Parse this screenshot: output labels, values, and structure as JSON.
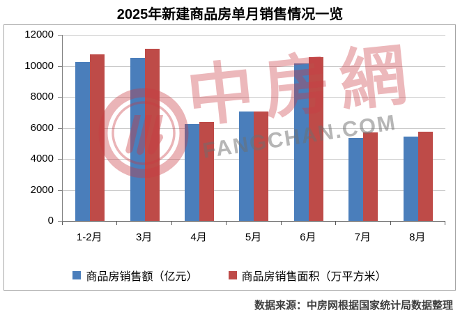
{
  "page": {
    "title": "2025年新建商品房单月销售情况一览",
    "source_note": "数据来源：中房网根据国家统计局数据整理"
  },
  "watermark": {
    "logo": "fangchan-circle-logo",
    "brand_text": "中房網",
    "domain_text": "FANGCHAN.COM"
  },
  "chart_data": {
    "type": "bar",
    "title": "2025年新建商品房单月销售情况一览",
    "categories": [
      "1-2月",
      "3月",
      "4月",
      "5月",
      "6月",
      "7月",
      "8月"
    ],
    "series": [
      {
        "name": "商品房销售额（亿元）",
        "color": "#4a7ebb",
        "values": [
          10250,
          10500,
          6250,
          7050,
          10150,
          5350,
          5450
        ]
      },
      {
        "name": "商品房销售面积（万平方米）",
        "color": "#be4b48",
        "values": [
          10750,
          11100,
          6400,
          7050,
          10550,
          5700,
          5750
        ]
      }
    ],
    "ylim": [
      0,
      12000
    ],
    "ytick_step": 2000,
    "grid": true,
    "legend_position": "bottom",
    "axis_color": "#7f7f7f",
    "gridline_color": "#c9c9c9"
  }
}
